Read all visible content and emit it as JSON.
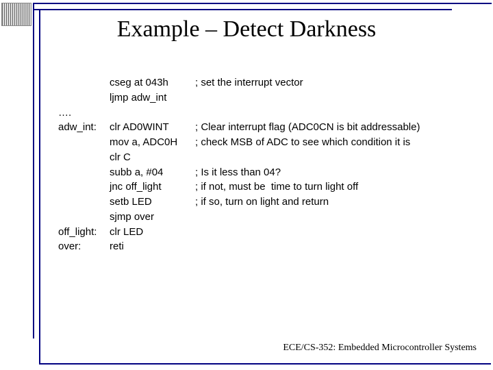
{
  "colors": {
    "accent": "#000080",
    "background": "#ffffff",
    "text": "#000000"
  },
  "typography": {
    "title_fontsize": 34,
    "title_family": "Times New Roman",
    "body_fontsize": 15,
    "body_family": "Arial",
    "footer_fontsize": 14,
    "footer_family": "Times New Roman"
  },
  "slide": {
    "title": "Example – Detect Darkness",
    "footer": "ECE/CS-352: Embedded Microcontroller Systems"
  },
  "code": {
    "rows": [
      {
        "label": "",
        "instr": "cseg at 043h",
        "comment": "; set the interrupt vector"
      },
      {
        "label": "",
        "instr": "ljmp adw_int",
        "comment": ""
      },
      {
        "label": "….",
        "instr": "",
        "comment": ""
      },
      {
        "label": "adw_int:",
        "instr": "clr AD0WINT",
        "comment": "; Clear interrupt flag (ADC0CN is bit addressable)"
      },
      {
        "label": "",
        "instr": "mov a, ADC0H",
        "comment": "; check MSB of ADC to see which condition it is"
      },
      {
        "label": "",
        "instr": "clr C",
        "comment": ""
      },
      {
        "label": "",
        "instr": "subb a, #04",
        "comment": "; Is it less than 04?"
      },
      {
        "label": "",
        "instr": "jnc off_light",
        "comment": "; if not, must be  time to turn light off"
      },
      {
        "label": "",
        "instr": "setb LED",
        "comment": "; if so, turn on light and return"
      },
      {
        "label": "",
        "instr": "sjmp over",
        "comment": ""
      },
      {
        "label": "off_light:",
        "instr": "clr LED",
        "comment": ""
      },
      {
        "label": "over:",
        "instr": "reti",
        "comment": ""
      }
    ]
  }
}
